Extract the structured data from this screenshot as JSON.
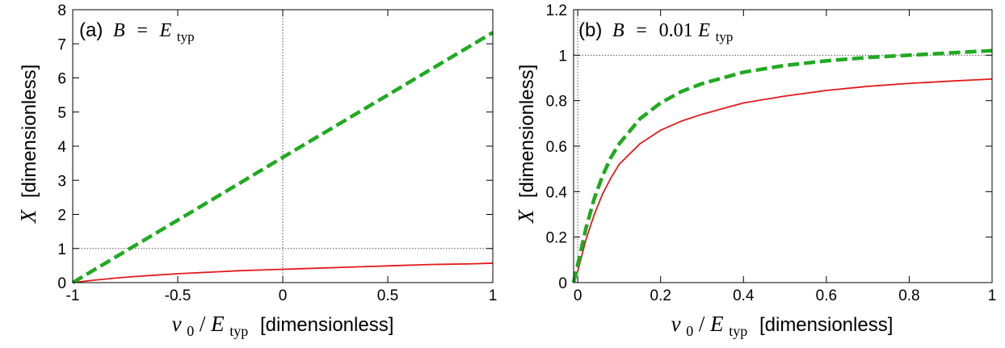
{
  "colors": {
    "red_series": "#e41a1c",
    "green_series": "#1faa1f",
    "guide": "#555555",
    "frame": "#000000"
  },
  "chart_data": [
    {
      "type": "line",
      "panel": "(a)",
      "annotation": {
        "prefix": "(a)",
        "symbol_lhs": "B",
        "equals": "=",
        "coef": "",
        "symbol_rhs": "E",
        "subscript": "typ"
      },
      "xlabel": {
        "symbol": "ν",
        "sub0": "0",
        "slash": "/",
        "symbol2": "E",
        "sub2": "typ",
        "unit": "[dimensionless]"
      },
      "ylabel": {
        "symbol": "X",
        "unit": "[dimensionless]"
      },
      "xlim": [
        -1,
        1
      ],
      "ylim": [
        0,
        8
      ],
      "xticks": [
        -1,
        -0.5,
        0,
        0.5,
        1
      ],
      "xtick_labels": [
        "-1",
        "-0.5",
        "0",
        "0.5",
        "1"
      ],
      "yticks": [
        0,
        1,
        2,
        3,
        4,
        5,
        6,
        7,
        8
      ],
      "ytick_labels": [
        "0",
        "1",
        "2",
        "3",
        "4",
        "5",
        "6",
        "7",
        "8"
      ],
      "guides": {
        "vertical_x": 0,
        "horizontal_y": 1
      },
      "grid": false,
      "series": [
        {
          "style": "solid",
          "color": "#e41a1c",
          "x": [
            -1,
            -0.9,
            -0.8,
            -0.7,
            -0.6,
            -0.5,
            -0.4,
            -0.3,
            -0.2,
            -0.1,
            0,
            0.1,
            0.2,
            0.3,
            0.4,
            0.5,
            0.6,
            0.7,
            0.8,
            0.9,
            1
          ],
          "y": [
            0,
            0.07,
            0.13,
            0.18,
            0.22,
            0.26,
            0.29,
            0.32,
            0.35,
            0.37,
            0.39,
            0.41,
            0.43,
            0.45,
            0.47,
            0.49,
            0.51,
            0.53,
            0.54,
            0.55,
            0.57
          ]
        },
        {
          "style": "dashed",
          "color": "#1faa1f",
          "x": [
            -1,
            -0.5,
            0,
            0.5,
            1
          ],
          "y": [
            0,
            1.83,
            3.67,
            5.5,
            7.33
          ]
        }
      ]
    },
    {
      "type": "line",
      "panel": "(b)",
      "annotation": {
        "prefix": "(b)",
        "symbol_lhs": "B",
        "equals": "=",
        "coef": "0.01",
        "symbol_rhs": "E",
        "subscript": "typ"
      },
      "xlabel": {
        "symbol": "ν",
        "sub0": "0",
        "slash": "/",
        "symbol2": "E",
        "sub2": "typ",
        "unit": "[dimensionless]"
      },
      "ylabel": {
        "symbol": "X",
        "unit": "[dimensionless]"
      },
      "xlim": [
        -0.01,
        1
      ],
      "ylim": [
        0,
        1.2
      ],
      "xticks": [
        0,
        0.2,
        0.4,
        0.6,
        0.8,
        1
      ],
      "xtick_labels": [
        "0",
        "0.2",
        "0.4",
        "0.6",
        "0.8",
        "1"
      ],
      "yticks": [
        0,
        0.2,
        0.4,
        0.6,
        0.8,
        1,
        1.2
      ],
      "ytick_labels": [
        "0",
        "0.2",
        "0.4",
        "0.6",
        "0.8",
        "1",
        "1.2"
      ],
      "guides": {
        "vertical_x": 0,
        "horizontal_y": 1
      },
      "grid": false,
      "series": [
        {
          "style": "solid",
          "color": "#e41a1c",
          "x": [
            -0.01,
            0,
            0.01,
            0.02,
            0.04,
            0.06,
            0.08,
            0.1,
            0.15,
            0.2,
            0.25,
            0.3,
            0.4,
            0.5,
            0.6,
            0.7,
            0.8,
            0.9,
            1
          ],
          "y": [
            0,
            0.05,
            0.12,
            0.19,
            0.3,
            0.39,
            0.46,
            0.52,
            0.61,
            0.67,
            0.71,
            0.74,
            0.79,
            0.82,
            0.845,
            0.863,
            0.876,
            0.886,
            0.895
          ]
        },
        {
          "style": "dashed",
          "color": "#1faa1f",
          "x": [
            -0.01,
            0,
            0.01,
            0.02,
            0.04,
            0.06,
            0.08,
            0.1,
            0.15,
            0.2,
            0.25,
            0.3,
            0.4,
            0.5,
            0.6,
            0.7,
            0.8,
            0.9,
            1
          ],
          "y": [
            0,
            0.08,
            0.16,
            0.24,
            0.37,
            0.47,
            0.55,
            0.61,
            0.72,
            0.79,
            0.84,
            0.875,
            0.925,
            0.955,
            0.975,
            0.99,
            1.0,
            1.01,
            1.02
          ]
        }
      ]
    }
  ]
}
